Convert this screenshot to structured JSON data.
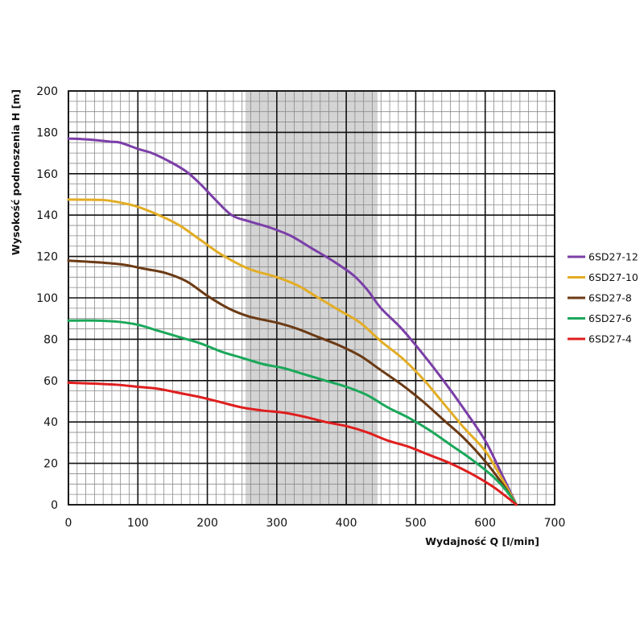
{
  "chart_data": {
    "type": "line",
    "title": "",
    "xlabel": "Wydajność Q [l/min]",
    "ylabel": "Wysokość podnoszenia H [m]",
    "xlim": [
      0,
      700
    ],
    "ylim": [
      0,
      200
    ],
    "x_ticks": [
      "0",
      "100",
      "200",
      "300",
      "400",
      "500",
      "600",
      "700"
    ],
    "y_ticks": [
      "0",
      "20",
      "40",
      "60",
      "80",
      "100",
      "120",
      "140",
      "160",
      "180",
      "200"
    ],
    "grid": true,
    "legend_position": "right",
    "highlight_range_x": [
      255,
      445
    ],
    "series": [
      {
        "name": "6SD27-12",
        "color": "#7b3fa8",
        "points": [
          [
            0,
            177
          ],
          [
            30,
            176.5
          ],
          [
            60,
            175.5
          ],
          [
            75,
            175
          ],
          [
            100,
            172
          ],
          [
            120,
            170
          ],
          [
            145,
            166
          ],
          [
            170,
            161
          ],
          [
            190,
            155
          ],
          [
            210,
            148
          ],
          [
            235,
            140
          ],
          [
            260,
            137
          ],
          [
            290,
            134
          ],
          [
            320,
            130
          ],
          [
            350,
            124
          ],
          [
            380,
            118
          ],
          [
            410,
            111
          ],
          [
            430,
            104
          ],
          [
            450,
            95
          ],
          [
            480,
            85
          ],
          [
            510,
            73
          ],
          [
            540,
            60
          ],
          [
            570,
            46
          ],
          [
            600,
            31
          ],
          [
            625,
            14
          ],
          [
            645,
            0
          ]
        ]
      },
      {
        "name": "6SD27-10",
        "color": "#e3ad24",
        "points": [
          [
            0,
            147.5
          ],
          [
            50,
            147.3
          ],
          [
            75,
            146
          ],
          [
            100,
            144
          ],
          [
            130,
            140
          ],
          [
            160,
            135
          ],
          [
            190,
            128
          ],
          [
            220,
            121
          ],
          [
            260,
            114
          ],
          [
            300,
            110
          ],
          [
            330,
            106
          ],
          [
            360,
            100
          ],
          [
            390,
            94
          ],
          [
            420,
            88
          ],
          [
            450,
            79
          ],
          [
            480,
            71
          ],
          [
            510,
            61
          ],
          [
            540,
            49
          ],
          [
            570,
            37
          ],
          [
            600,
            26
          ],
          [
            625,
            12
          ],
          [
            645,
            0
          ]
        ]
      },
      {
        "name": "6SD27-8",
        "color": "#6b3a14",
        "points": [
          [
            0,
            118
          ],
          [
            50,
            117
          ],
          [
            80,
            116
          ],
          [
            110,
            114
          ],
          [
            140,
            112
          ],
          [
            170,
            108
          ],
          [
            200,
            101
          ],
          [
            230,
            95
          ],
          [
            260,
            91
          ],
          [
            300,
            88
          ],
          [
            330,
            85
          ],
          [
            360,
            81
          ],
          [
            390,
            77
          ],
          [
            420,
            72
          ],
          [
            450,
            65
          ],
          [
            480,
            58
          ],
          [
            510,
            50
          ],
          [
            540,
            41
          ],
          [
            570,
            32
          ],
          [
            600,
            21
          ],
          [
            625,
            10
          ],
          [
            645,
            0
          ]
        ]
      },
      {
        "name": "6SD27-6",
        "color": "#1aa85a",
        "points": [
          [
            0,
            89
          ],
          [
            40,
            89
          ],
          [
            70,
            88.5
          ],
          [
            100,
            87
          ],
          [
            130,
            84
          ],
          [
            160,
            81
          ],
          [
            190,
            78
          ],
          [
            220,
            74
          ],
          [
            250,
            71
          ],
          [
            280,
            68
          ],
          [
            310,
            66
          ],
          [
            340,
            63
          ],
          [
            370,
            60
          ],
          [
            400,
            57
          ],
          [
            430,
            53
          ],
          [
            460,
            47
          ],
          [
            490,
            42
          ],
          [
            520,
            36
          ],
          [
            550,
            29
          ],
          [
            580,
            22
          ],
          [
            610,
            14
          ],
          [
            630,
            7
          ],
          [
            645,
            0
          ]
        ]
      },
      {
        "name": "6SD27-4",
        "color": "#e01e1e",
        "points": [
          [
            0,
            59
          ],
          [
            40,
            58.5
          ],
          [
            70,
            58
          ],
          [
            100,
            57
          ],
          [
            130,
            56
          ],
          [
            160,
            54
          ],
          [
            190,
            52
          ],
          [
            220,
            49.5
          ],
          [
            250,
            47
          ],
          [
            280,
            45.5
          ],
          [
            310,
            44.5
          ],
          [
            340,
            42.5
          ],
          [
            370,
            40
          ],
          [
            400,
            38
          ],
          [
            430,
            35
          ],
          [
            460,
            31
          ],
          [
            490,
            28
          ],
          [
            520,
            24
          ],
          [
            550,
            20
          ],
          [
            580,
            15
          ],
          [
            610,
            9
          ],
          [
            630,
            4
          ],
          [
            645,
            0
          ]
        ]
      }
    ]
  }
}
